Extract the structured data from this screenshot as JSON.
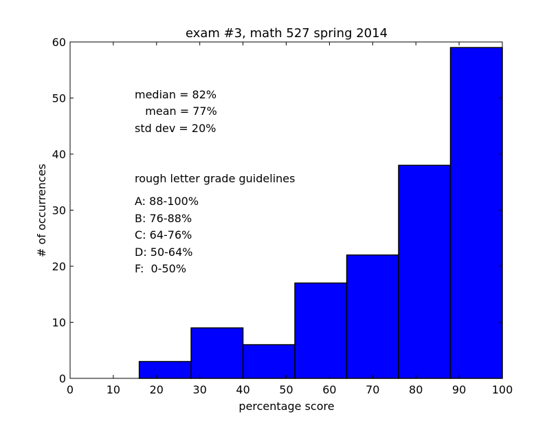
{
  "chart_data": {
    "type": "bar",
    "title": "exam #3, math 527 spring 2014",
    "xlabel": "percentage score",
    "ylabel": "# of occurrences",
    "xlim": [
      0,
      100
    ],
    "ylim": [
      0,
      60
    ],
    "xticks": [
      0,
      10,
      20,
      30,
      40,
      50,
      60,
      70,
      80,
      90,
      100
    ],
    "yticks": [
      0,
      10,
      20,
      30,
      40,
      50,
      60
    ],
    "bins": [
      {
        "x0": 0,
        "x1": 16,
        "value": 0
      },
      {
        "x0": 16,
        "x1": 28,
        "value": 3
      },
      {
        "x0": 28,
        "x1": 40,
        "value": 9
      },
      {
        "x0": 40,
        "x1": 52,
        "value": 6
      },
      {
        "x0": 52,
        "x1": 64,
        "value": 17
      },
      {
        "x0": 64,
        "x1": 76,
        "value": 22
      },
      {
        "x0": 76,
        "x1": 88,
        "value": 38
      },
      {
        "x0": 88,
        "x1": 100,
        "value": 59
      }
    ],
    "bar_color": "#0000ff",
    "grid": false,
    "stats": [
      "median = 82%",
      "   mean = 77%",
      "std dev = 20%"
    ],
    "guidelines_title": "rough letter grade guidelines",
    "guidelines": [
      "A: 88-100%",
      "B: 76-88%",
      "C: 64-76%",
      "D: 50-64%",
      "F:  0-50%"
    ]
  }
}
